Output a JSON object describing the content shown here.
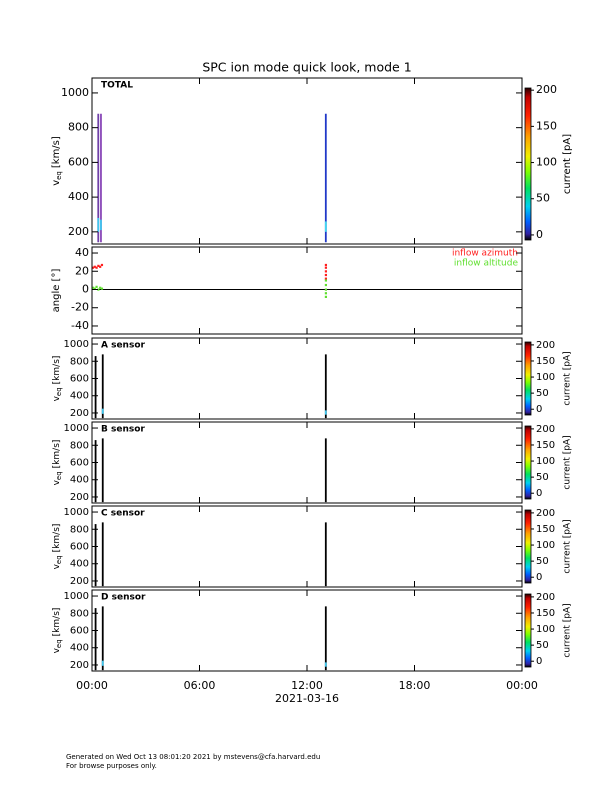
{
  "chart_data": [
    {
      "type": "spectrogram",
      "title": "SPC ion mode quick look, mode 1",
      "label": "TOTAL",
      "ylabel": "v",
      "ylabel_sub": "eq",
      "ylabel_unit": "[km/s]",
      "xlim": [
        0,
        24
      ],
      "xticks": [
        0,
        6,
        12,
        18,
        24
      ],
      "ylim": [
        130,
        1086
      ],
      "yticks": [
        200,
        400,
        600,
        800,
        1000
      ],
      "colorbar": {
        "label": "current [pA]",
        "lim": [
          -7,
          203
        ],
        "ticks": [
          0,
          50,
          100,
          150,
          200
        ]
      },
      "bars": [
        {
          "x": 0.35,
          "lo": 140,
          "hi": 880,
          "color": "#7040a8"
        },
        {
          "x": 0.35,
          "lo": 200,
          "hi": 280,
          "color": "#40c8f0"
        },
        {
          "x": 0.5,
          "lo": 140,
          "hi": 880,
          "color": "#8a48b8"
        },
        {
          "x": 0.5,
          "lo": 210,
          "hi": 270,
          "color": "#40c8f0"
        },
        {
          "x": 13.05,
          "lo": 140,
          "hi": 880,
          "color": "#2038c8"
        },
        {
          "x": 13.05,
          "lo": 200,
          "hi": 260,
          "color": "#40d8f0"
        }
      ]
    },
    {
      "type": "scatter",
      "ylabel": "angle [°]",
      "xlim": [
        0,
        24
      ],
      "xticks": [
        0,
        6,
        12,
        18,
        24
      ],
      "ylim": [
        -48.8,
        46.6
      ],
      "yticks": [
        -40,
        -20,
        0,
        20,
        40
      ],
      "zero_line": 0,
      "series": [
        {
          "name": "inflow azimuth",
          "color": "#ff2020",
          "x": [
            0.05,
            0.15,
            0.25,
            0.35,
            0.45,
            0.55,
            13.05,
            13.05,
            13.05,
            13.05,
            13.05
          ],
          "values": [
            24,
            25,
            24,
            26,
            25,
            27,
            12,
            16,
            20,
            24,
            27
          ]
        },
        {
          "name": "inflow altitude",
          "color": "#60e030",
          "x": [
            0.05,
            0.15,
            0.25,
            0.35,
            0.45,
            0.55,
            13.05,
            13.05,
            13.05,
            13.05,
            13.05
          ],
          "values": [
            2,
            1,
            3,
            0,
            2,
            1,
            -8,
            -4,
            0,
            5,
            10
          ]
        }
      ]
    },
    {
      "type": "spectrogram",
      "label": "A sensor",
      "ylabel": "v",
      "ylabel_sub": "eq",
      "ylabel_unit": "[km/s]",
      "xlim": [
        0,
        24
      ],
      "xticks": [
        0,
        6,
        12,
        18,
        24
      ],
      "ylim": [
        130,
        1070
      ],
      "yticks": [
        200,
        400,
        600,
        800,
        1000
      ],
      "colorbar": {
        "label": "current [pA]",
        "lim": [
          -18,
          209
        ],
        "ticks": [
          0,
          50,
          100,
          150,
          200
        ]
      },
      "bars": [
        {
          "x": 0.2,
          "lo": 140,
          "hi": 860,
          "color": "#000000"
        },
        {
          "x": 0.6,
          "lo": 140,
          "hi": 880,
          "color": "#000000"
        },
        {
          "x": 0.6,
          "lo": 190,
          "hi": 250,
          "color": "#40c8f0"
        },
        {
          "x": 13.05,
          "lo": 140,
          "hi": 880,
          "color": "#000000"
        },
        {
          "x": 13.05,
          "lo": 180,
          "hi": 230,
          "color": "#40c8f0"
        }
      ]
    },
    {
      "type": "spectrogram",
      "label": "B sensor",
      "ylabel": "v",
      "ylabel_sub": "eq",
      "ylabel_unit": "[km/s]",
      "xlim": [
        0,
        24
      ],
      "xticks": [
        0,
        6,
        12,
        18,
        24
      ],
      "ylim": [
        130,
        1070
      ],
      "yticks": [
        200,
        400,
        600,
        800,
        1000
      ],
      "colorbar": {
        "label": "current [pA]",
        "lim": [
          -18,
          209
        ],
        "ticks": [
          0,
          50,
          100,
          150,
          200
        ]
      },
      "bars": [
        {
          "x": 0.2,
          "lo": 140,
          "hi": 860,
          "color": "#000000"
        },
        {
          "x": 0.6,
          "lo": 140,
          "hi": 880,
          "color": "#000000"
        },
        {
          "x": 13.05,
          "lo": 140,
          "hi": 880,
          "color": "#000000"
        }
      ]
    },
    {
      "type": "spectrogram",
      "label": "C sensor",
      "ylabel": "v",
      "ylabel_sub": "eq",
      "ylabel_unit": "[km/s]",
      "xlim": [
        0,
        24
      ],
      "xticks": [
        0,
        6,
        12,
        18,
        24
      ],
      "ylim": [
        130,
        1070
      ],
      "yticks": [
        200,
        400,
        600,
        800,
        1000
      ],
      "colorbar": {
        "label": "current [pA]",
        "lim": [
          -18,
          209
        ],
        "ticks": [
          0,
          50,
          100,
          150,
          200
        ]
      },
      "bars": [
        {
          "x": 0.2,
          "lo": 140,
          "hi": 860,
          "color": "#000000"
        },
        {
          "x": 0.6,
          "lo": 140,
          "hi": 880,
          "color": "#000000"
        },
        {
          "x": 13.05,
          "lo": 140,
          "hi": 880,
          "color": "#000000"
        }
      ]
    },
    {
      "type": "spectrogram",
      "label": "D sensor",
      "ylabel": "v",
      "ylabel_sub": "eq",
      "ylabel_unit": "[km/s]",
      "xlim": [
        0,
        24
      ],
      "xticks": [
        {
          "value": 0,
          "label": "00:00"
        },
        {
          "value": 6,
          "label": "06:00"
        },
        {
          "value": 12,
          "label": "12:00"
        },
        {
          "value": 18,
          "label": "18:00"
        },
        {
          "value": 24,
          "label": "00:00"
        }
      ],
      "xlabel": "2021-03-16",
      "ylim": [
        130,
        1070
      ],
      "yticks": [
        200,
        400,
        600,
        800,
        1000
      ],
      "colorbar": {
        "label": "current [pA]",
        "lim": [
          -18,
          209
        ],
        "ticks": [
          0,
          50,
          100,
          150,
          200
        ]
      },
      "bars": [
        {
          "x": 0.2,
          "lo": 140,
          "hi": 860,
          "color": "#000000"
        },
        {
          "x": 0.6,
          "lo": 140,
          "hi": 880,
          "color": "#000000"
        },
        {
          "x": 0.6,
          "lo": 190,
          "hi": 250,
          "color": "#40c8f0"
        },
        {
          "x": 13.05,
          "lo": 140,
          "hi": 880,
          "color": "#000000"
        },
        {
          "x": 13.05,
          "lo": 180,
          "hi": 230,
          "color": "#40c8f0"
        }
      ]
    }
  ],
  "footer": [
    "Generated on Wed Oct 13 08:01:20 2021 by mstevens@cfa.harvard.edu",
    "For browse purposes only."
  ]
}
